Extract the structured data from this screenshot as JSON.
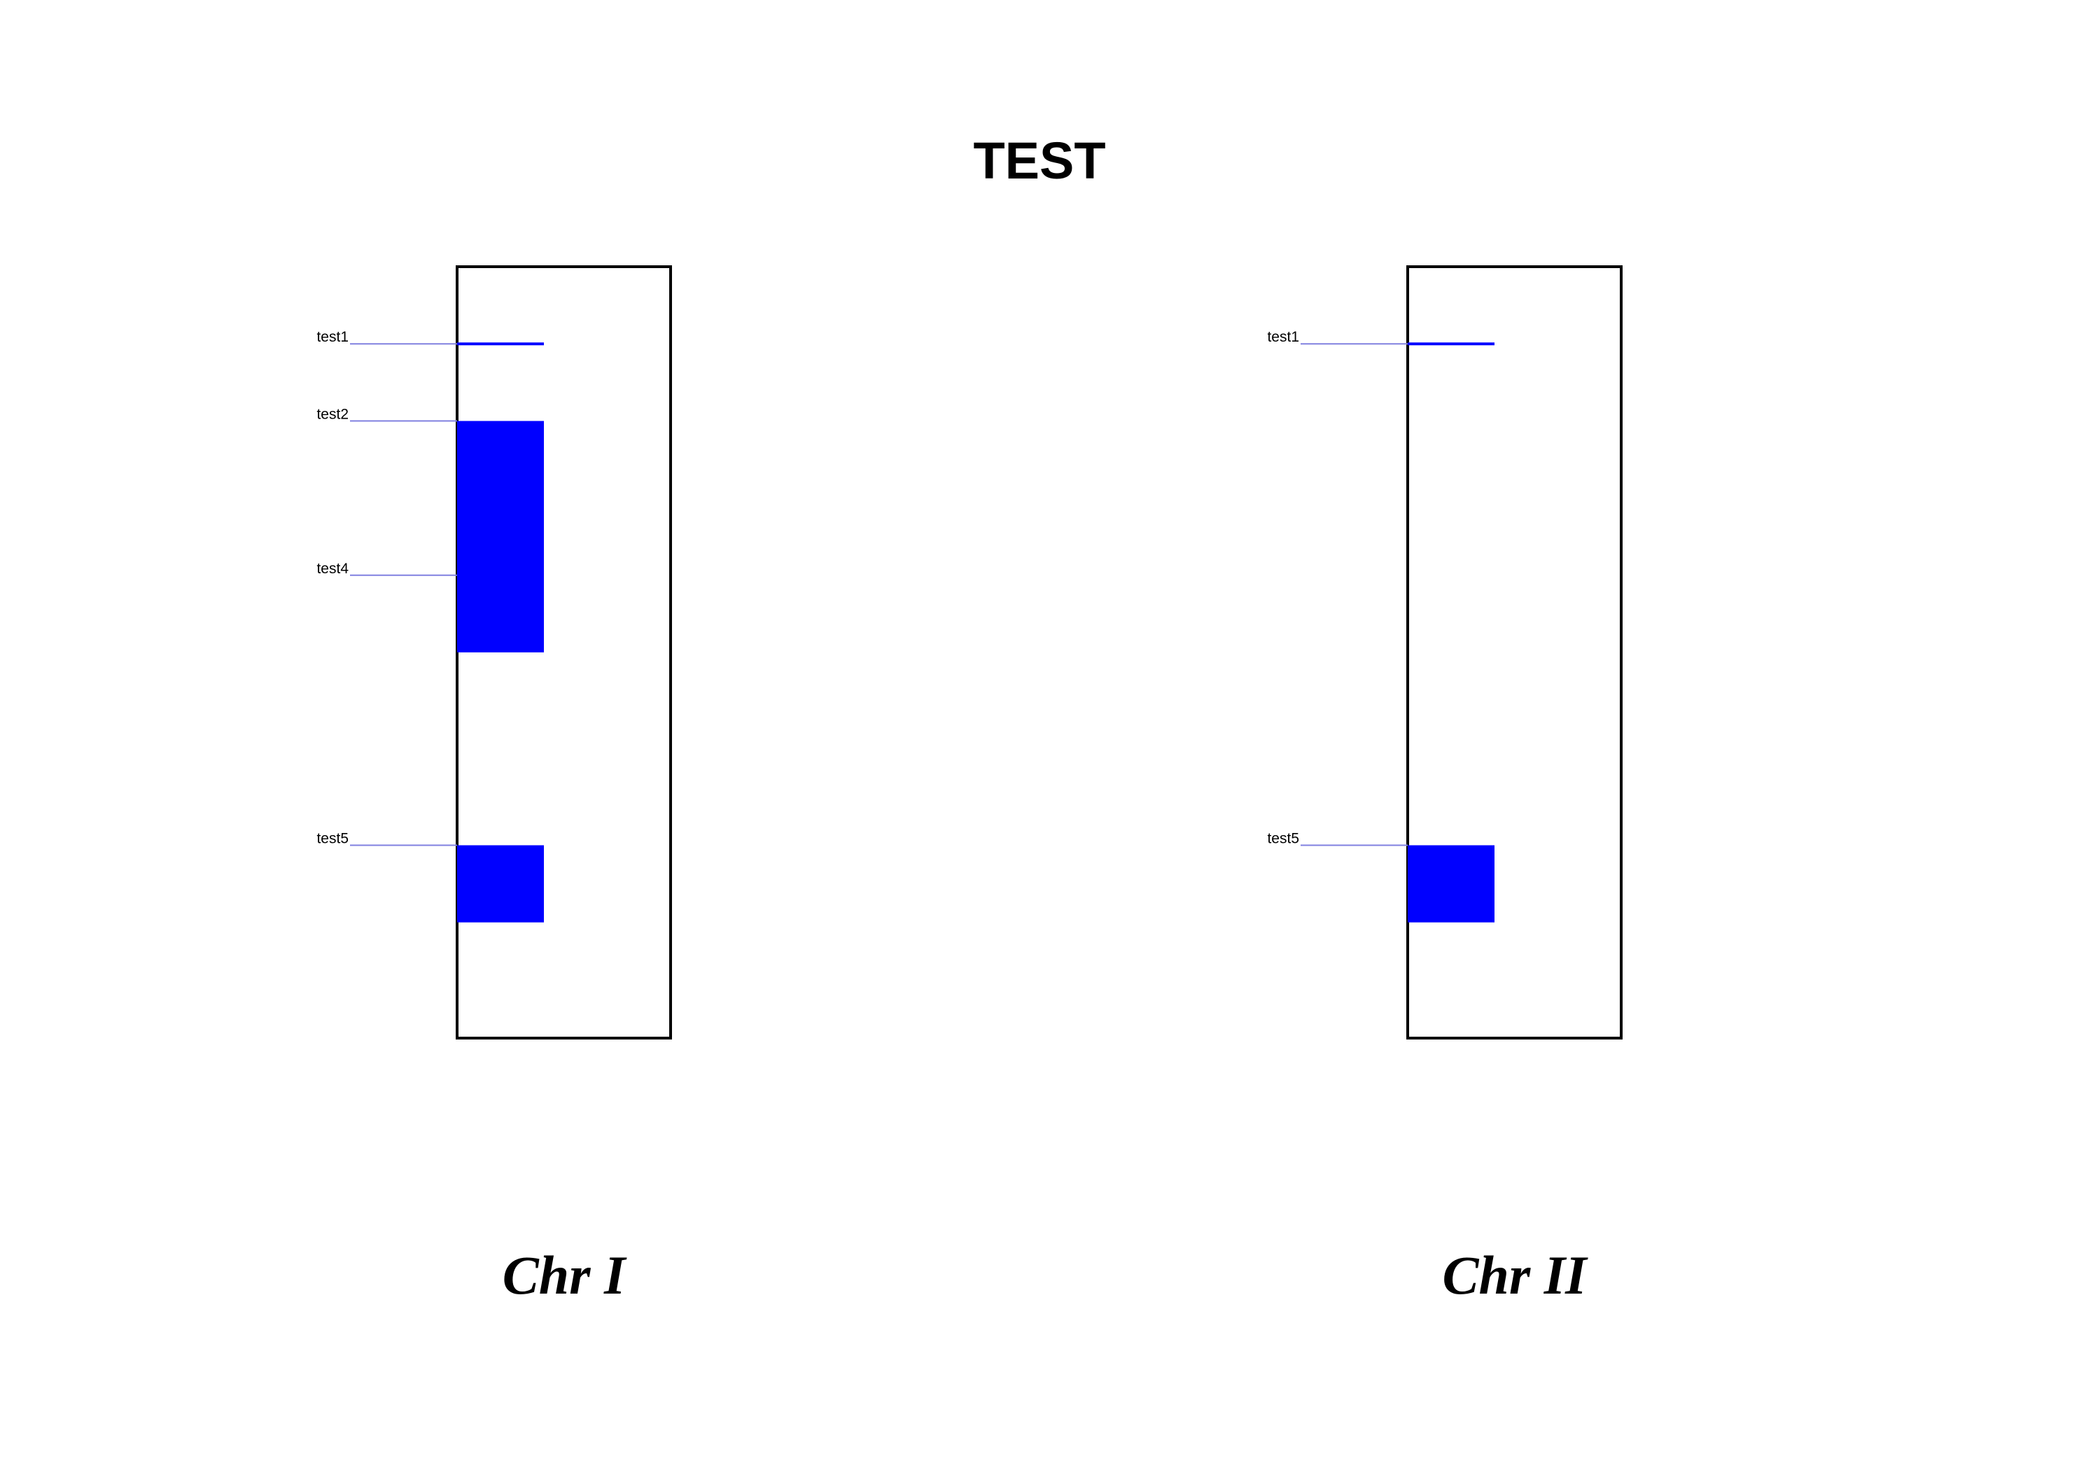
{
  "title": "TEST",
  "colors": {
    "feature": "#0000ff",
    "connector": "#8080e0",
    "outline": "#000000"
  },
  "chart_data": {
    "type": "chromosome-map",
    "title": "TEST",
    "position_units": "fraction of chromosome length",
    "chromosomes": [
      {
        "label": "Chr I",
        "features": [
          {
            "name": "test1",
            "start": 0.1,
            "end": 0.1
          },
          {
            "name": "test2",
            "start": 0.2,
            "end": 0.5
          },
          {
            "name": "test4",
            "start": 0.4,
            "end": 0.4
          },
          {
            "name": "test5",
            "start": 0.75,
            "end": 0.85
          }
        ]
      },
      {
        "label": "Chr II",
        "features": [
          {
            "name": "test1",
            "start": 0.1,
            "end": 0.1
          },
          {
            "name": "test5",
            "start": 0.75,
            "end": 0.85
          }
        ]
      }
    ]
  }
}
